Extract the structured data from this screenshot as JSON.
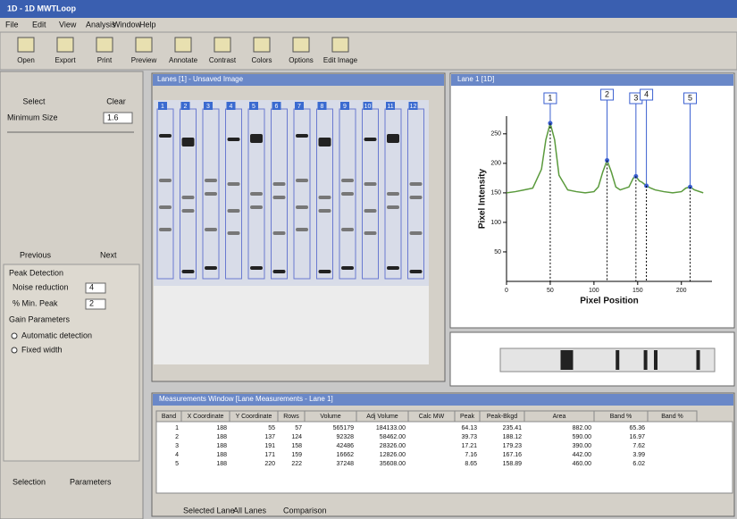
{
  "window_title": "1D - 1D MWTLoop",
  "menu": [
    "File",
    "Edit",
    "View",
    "Analysis",
    "Window",
    "Help"
  ],
  "toolbar": [
    "Open",
    "Export",
    "Print",
    "Preview",
    "Annotate",
    "Contrast",
    "Colors",
    "Options",
    "Edit Image"
  ],
  "left_panel": {
    "select": "Select",
    "clear": "Clear",
    "min_size_label": "Minimum Size",
    "min_size_value": "1.6",
    "previous": "Previous",
    "next": "Next",
    "peak_detection": "Peak Detection",
    "noise_label": "Noise reduction",
    "noise_value": "4",
    "min_peak_label": "% Min. Peak",
    "min_peak_value": "2",
    "gain_label": "Gain Parameters",
    "auto": "Automatic detection",
    "fixed": "Fixed width",
    "tabs": [
      "Selection",
      "Parameters"
    ]
  },
  "lanes_window": {
    "title": "Lanes [1] - Unsaved Image",
    "lane_labels": [
      "1",
      "2",
      "3",
      "4",
      "5",
      "6",
      "7",
      "8",
      "9",
      "10",
      "11",
      "12"
    ]
  },
  "profile_window": {
    "title": "Lane 1 [1D]"
  },
  "chart_data": {
    "type": "line",
    "xlabel": "Pixel Position",
    "ylabel": "Pixel Intensity",
    "x": [
      0,
      10,
      20,
      30,
      40,
      45,
      50,
      55,
      60,
      70,
      80,
      90,
      100,
      105,
      110,
      115,
      120,
      125,
      130,
      140,
      145,
      148,
      152,
      155,
      160,
      165,
      170,
      180,
      190,
      200,
      205,
      210,
      215,
      225
    ],
    "values": [
      150,
      152,
      155,
      158,
      190,
      240,
      268,
      240,
      180,
      155,
      152,
      150,
      152,
      160,
      185,
      205,
      185,
      160,
      155,
      160,
      175,
      178,
      170,
      168,
      162,
      158,
      155,
      152,
      150,
      152,
      158,
      160,
      155,
      150
    ],
    "color": "#5a9a3c",
    "xlim": [
      0,
      235
    ],
    "ylim": [
      0,
      280
    ],
    "xticks": [
      0,
      50,
      100,
      150,
      200
    ],
    "yticks": [
      50,
      100,
      150,
      200,
      250
    ],
    "annotations": [
      {
        "text": "1",
        "x": 50,
        "y": 268
      },
      {
        "text": "2",
        "x": 115,
        "y": 205
      },
      {
        "text": "3",
        "x": 148,
        "y": 178
      },
      {
        "text": "4",
        "x": 160,
        "y": 162
      },
      {
        "text": "5",
        "x": 210,
        "y": 160
      }
    ]
  },
  "measurements": {
    "title": "Measurements Window [Lane Measurements - Lane 1]",
    "columns": [
      "Band",
      "X Coordinate",
      "Y Coordinate",
      "Rows",
      "Volume",
      "Adj Volume",
      "Calc MW",
      "Peak",
      "Peak-Bkgd",
      "Area",
      "Band %",
      "Band %"
    ],
    "rows": [
      [
        "1",
        "188",
        "55",
        "57",
        "565179",
        "184133.00",
        "",
        "64.13",
        "235.41",
        "882.00",
        "65.36",
        ""
      ],
      [
        "2",
        "188",
        "137",
        "124",
        "92328",
        "58462.00",
        "",
        "39.73",
        "188.12",
        "590.00",
        "16.97",
        ""
      ],
      [
        "3",
        "188",
        "191",
        "158",
        "42486",
        "28326.00",
        "",
        "17.21",
        "179.23",
        "390.00",
        "7.62",
        ""
      ],
      [
        "4",
        "188",
        "171",
        "159",
        "16662",
        "12826.00",
        "",
        "7.16",
        "167.16",
        "442.00",
        "3.99",
        ""
      ],
      [
        "5",
        "188",
        "220",
        "222",
        "37248",
        "35608.00",
        "",
        "8.65",
        "158.89",
        "460.00",
        "6.02",
        ""
      ]
    ]
  },
  "bottom_tabs": [
    "Selected Lane",
    "All Lanes",
    "Comparison"
  ]
}
